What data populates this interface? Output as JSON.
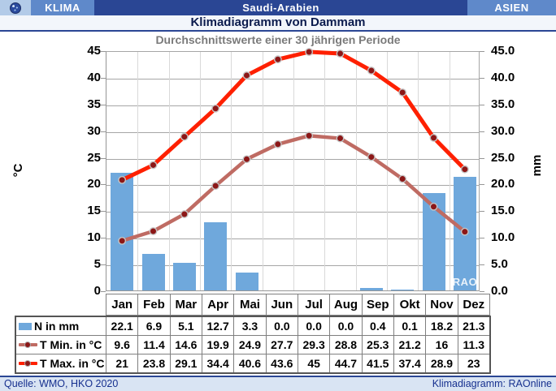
{
  "header": {
    "left_badge": "KLIMA",
    "country": "Saudi-Arabien",
    "right_badge": "ASIEN"
  },
  "title": "Klimadiagramm von Dammam",
  "subtitle": "Durchschnittswerte einer 30 jährigen Periode",
  "watermark": "RAO",
  "footer": {
    "source": "Quelle: WMO, HKO 2020",
    "credit": "Klimadiagramm: RAOnline"
  },
  "chart_data": {
    "type": "bar+line",
    "title": "Klimadiagramm von Dammam",
    "subtitle": "Durchschnittswerte einer 30 jährigen Periode",
    "categories": [
      "Jan",
      "Feb",
      "Mar",
      "Apr",
      "Mai",
      "Jun",
      "Jul",
      "Aug",
      "Sep",
      "Okt",
      "Nov",
      "Dez"
    ],
    "series": [
      {
        "name": "N in mm",
        "type": "bar",
        "color": "#6fa8dc",
        "values": [
          22.1,
          6.9,
          5.1,
          12.7,
          3.3,
          0.0,
          0.0,
          0.0,
          0.4,
          0.1,
          18.2,
          21.3
        ],
        "display": [
          "22.1",
          "6.9",
          "5.1",
          "12.7",
          "3.3",
          "0.0",
          "0.0",
          "0.0",
          "0.4",
          "0.1",
          "18.2",
          "21.3"
        ]
      },
      {
        "name": "T Min. in °C",
        "type": "line",
        "color": "#bf6b63",
        "values": [
          9.6,
          11.4,
          14.6,
          19.9,
          24.9,
          27.7,
          29.3,
          28.8,
          25.3,
          21.2,
          16,
          11.3
        ],
        "display": [
          "9.6",
          "11.4",
          "14.6",
          "19.9",
          "24.9",
          "27.7",
          "29.3",
          "28.8",
          "25.3",
          "21.2",
          "16",
          "11.3"
        ]
      },
      {
        "name": "T Max. in °C",
        "type": "line",
        "color": "#fe2000",
        "values": [
          21,
          23.8,
          29.1,
          34.4,
          40.6,
          43.6,
          45,
          44.7,
          41.5,
          37.4,
          28.9,
          23
        ],
        "display": [
          "21",
          "23.8",
          "29.1",
          "34.4",
          "40.6",
          "43.6",
          "45",
          "44.7",
          "41.5",
          "37.4",
          "28.9",
          "23"
        ]
      }
    ],
    "marker_color": "#8c1717",
    "marker_ring_color": "#c4c4c4",
    "left_axis": {
      "label": "°C",
      "min": 0,
      "max": 45,
      "step": 5,
      "decimals": 0
    },
    "right_axis": {
      "label": "mm",
      "min": 0,
      "max": 45,
      "step": 5,
      "decimals": 1
    },
    "grid": true,
    "legend_position": "table-left"
  }
}
